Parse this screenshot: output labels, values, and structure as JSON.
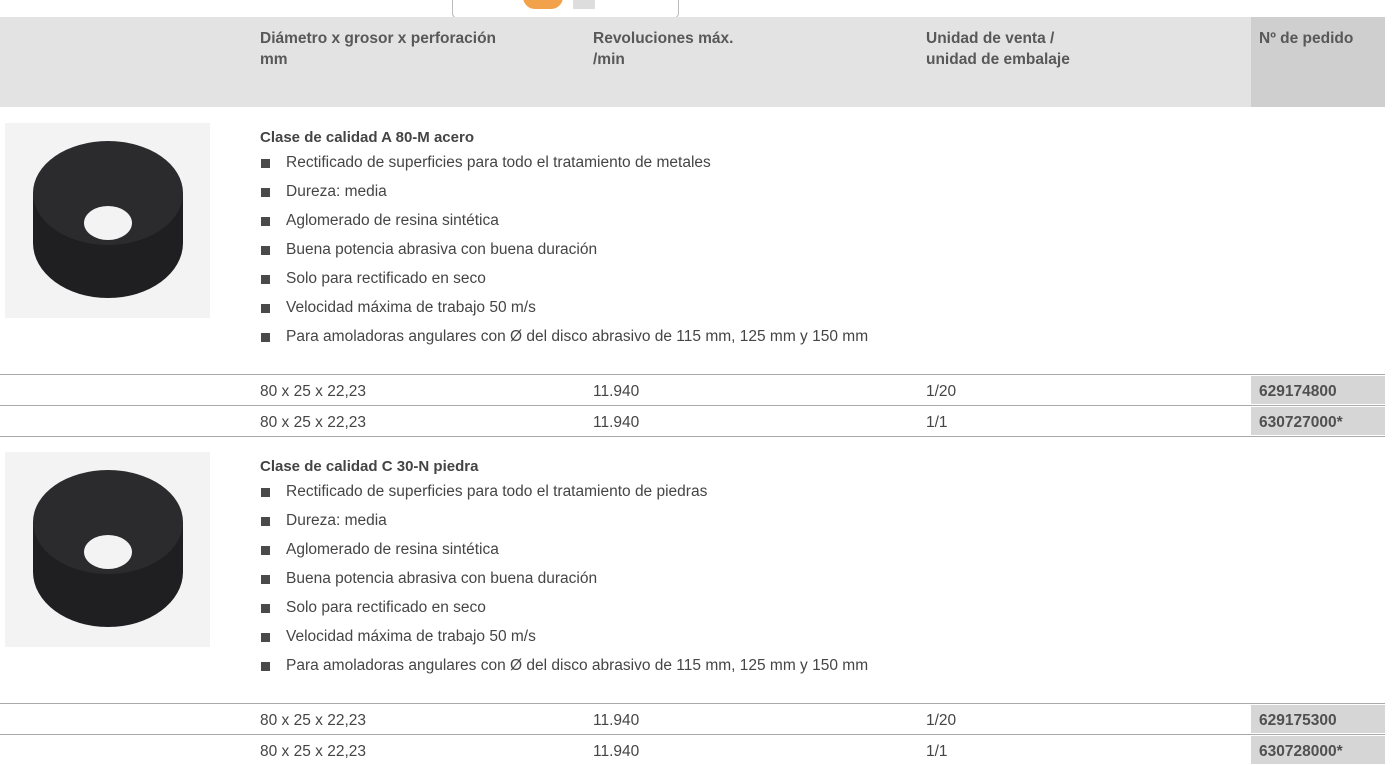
{
  "header": {
    "columns": [
      [
        "Diámetro x grosor x perforación",
        "mm"
      ],
      [
        "Revoluciones máx.",
        "/min"
      ],
      [
        "Unidad de venta /",
        "unidad de embalaje"
      ],
      [
        "Nº de pedido"
      ]
    ]
  },
  "products": [
    {
      "title": "Clase de calidad A 80-M acero",
      "bullets": [
        "Rectificado de superficies para todo el tratamiento de metales",
        "Dureza: media",
        "Aglomerado de resina sintética",
        "Buena potencia abrasiva con buena duración",
        "Solo para rectificado en seco",
        "Velocidad máxima de trabajo 50 m/s",
        "Para amoladoras angulares con Ø del disco abrasivo de 115 mm, 125 mm y 150 mm"
      ],
      "rows": [
        [
          "80 x 25 x 22,23",
          "11.940",
          "1/20",
          "629174800"
        ],
        [
          "80 x 25 x 22,23",
          "11.940",
          "1/1",
          "630727000*"
        ]
      ]
    },
    {
      "title": "Clase de calidad C 30-N piedra",
      "bullets": [
        "Rectificado de superficies para todo el tratamiento de piedras",
        "Dureza: media",
        "Aglomerado de resina sintética",
        "Buena potencia abrasiva con buena duración",
        "Solo para rectificado en seco",
        "Velocidad máxima de trabajo 50 m/s",
        "Para amoladoras angulares con Ø del disco abrasivo de 115 mm, 125 mm y 150 mm"
      ],
      "rows": [
        [
          "80 x 25 x 22,23",
          "11.940",
          "1/20",
          "629175300"
        ],
        [
          "80 x 25 x 22,23",
          "11.940",
          "1/1",
          "630728000*"
        ]
      ]
    }
  ]
}
